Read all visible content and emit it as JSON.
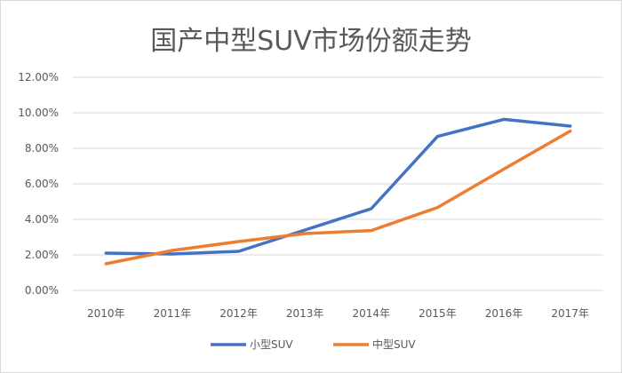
{
  "chart_data": {
    "type": "line",
    "title": "国产中型SUV市场份额走势",
    "xlabel": "",
    "ylabel": "",
    "categories": [
      "2010年",
      "2011年",
      "2012年",
      "2013年",
      "2014年",
      "2015年",
      "2016年",
      "2017年"
    ],
    "yticks": [
      "0.00%",
      "2.00%",
      "4.00%",
      "6.00%",
      "8.00%",
      "10.00%",
      "12.00%"
    ],
    "ylim": [
      0,
      12
    ],
    "grid": true,
    "legend": "bottom",
    "series": [
      {
        "name": "小型SUV",
        "color": "#4472c4",
        "values": [
          2.1,
          2.05,
          2.2,
          3.4,
          4.6,
          8.67,
          9.63,
          9.25
        ]
      },
      {
        "name": "中型SUV",
        "color": "#ed7d31",
        "values": [
          1.5,
          2.25,
          2.75,
          3.2,
          3.37,
          4.67,
          6.83,
          8.97
        ]
      }
    ]
  }
}
